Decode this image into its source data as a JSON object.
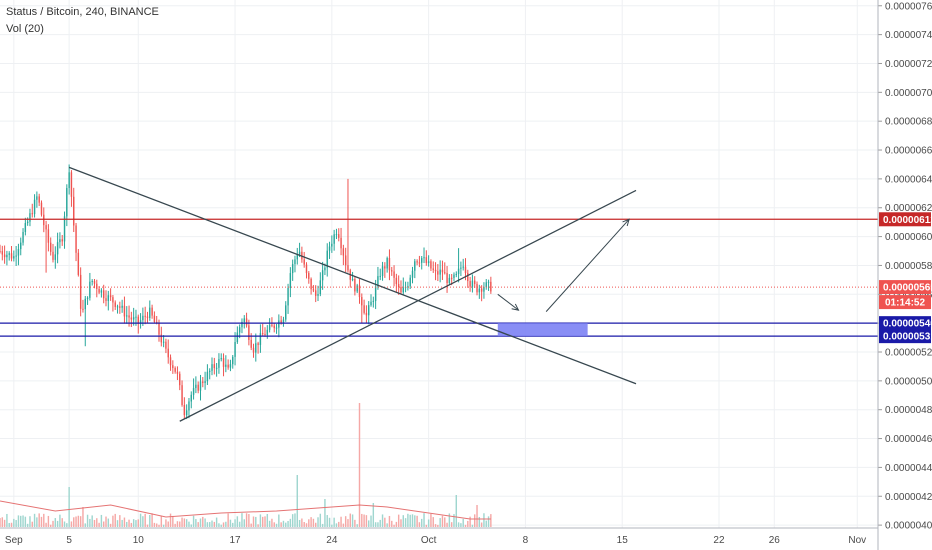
{
  "header": {
    "symbol": "Status / Bitcoin",
    "interval": "240",
    "exchange": "BINANCE",
    "volume_label": "Vol (20)"
  },
  "chart_data": {
    "type": "candlestick",
    "y_ticks": [
      "0.00000400",
      "0.00000420",
      "0.00000440",
      "0.00000460",
      "0.00000480",
      "0.00000500",
      "0.00000520",
      "0.00000540",
      "0.00000560",
      "0.00000580",
      "0.00000600",
      "0.00000620",
      "0.00000640",
      "0.00000660",
      "0.00000680",
      "0.00000700",
      "0.00000720",
      "0.00000740",
      "0.00000760"
    ],
    "y_tick_values": [
      400,
      420,
      440,
      460,
      480,
      500,
      520,
      540,
      560,
      580,
      600,
      620,
      640,
      660,
      680,
      700,
      720,
      740,
      760
    ],
    "x_ticks": [
      {
        "label": "Sep",
        "day": 1
      },
      {
        "label": "5",
        "day": 5
      },
      {
        "label": "10",
        "day": 10
      },
      {
        "label": "17",
        "day": 17
      },
      {
        "label": "24",
        "day": 24
      },
      {
        "label": "Oct",
        "day": 31
      },
      {
        "label": "8",
        "day": 38
      },
      {
        "label": "15",
        "day": 45
      },
      {
        "label": "22",
        "day": 52
      },
      {
        "label": "26",
        "day": 56
      },
      {
        "label": "Nov",
        "day": 62
      }
    ],
    "x_domain_days": [
      0,
      63.5
    ],
    "y_domain": [
      398,
      764
    ],
    "price_scale_unit": "1e-8 BTC",
    "price_series_days": [
      0,
      35.5
    ],
    "price_anchors": [
      [
        0,
        590
      ],
      [
        1,
        586
      ],
      [
        2,
        610
      ],
      [
        2.7,
        628
      ],
      [
        3.3,
        603
      ],
      [
        3.8,
        585
      ],
      [
        4.5,
        600
      ],
      [
        5,
        648
      ],
      [
        5.4,
        600
      ],
      [
        5.9,
        545
      ],
      [
        6.6,
        570
      ],
      [
        7.5,
        560
      ],
      [
        8.5,
        553
      ],
      [
        9.2,
        545
      ],
      [
        10,
        540
      ],
      [
        10.8,
        548
      ],
      [
        11.3,
        538
      ],
      [
        12,
        520
      ],
      [
        12.8,
        505
      ],
      [
        13.3,
        478
      ],
      [
        13.8,
        490
      ],
      [
        14.5,
        498
      ],
      [
        15.3,
        508
      ],
      [
        16,
        515
      ],
      [
        16.6,
        505
      ],
      [
        17,
        528
      ],
      [
        17.6,
        545
      ],
      [
        18.3,
        522
      ],
      [
        19,
        532
      ],
      [
        19.8,
        538
      ],
      [
        20.5,
        545
      ],
      [
        21,
        575
      ],
      [
        21.6,
        592
      ],
      [
        22.2,
        572
      ],
      [
        22.8,
        558
      ],
      [
        23.3,
        572
      ],
      [
        23.8,
        593
      ],
      [
        24.4,
        606
      ],
      [
        25,
        582
      ],
      [
        25.5,
        568
      ],
      [
        26,
        560
      ],
      [
        26.5,
        545
      ],
      [
        27,
        558
      ],
      [
        27.5,
        575
      ],
      [
        28,
        582
      ],
      [
        28.5,
        570
      ],
      [
        29,
        560
      ],
      [
        29.5,
        568
      ],
      [
        30,
        584
      ],
      [
        30.5,
        585
      ],
      [
        31,
        580
      ],
      [
        31.5,
        574
      ],
      [
        32,
        576
      ],
      [
        32.5,
        568
      ],
      [
        33,
        572
      ],
      [
        33.5,
        582
      ],
      [
        34,
        568
      ],
      [
        34.5,
        564
      ],
      [
        35,
        566
      ],
      [
        35.5,
        565
      ]
    ],
    "volume_series_days": [
      0,
      35.5
    ],
    "volume_spikes": [
      [
        5,
        20
      ],
      [
        6,
        10
      ],
      [
        21.5,
        26
      ],
      [
        23.5,
        14
      ],
      [
        26,
        62
      ],
      [
        27,
        12
      ],
      [
        33,
        16
      ],
      [
        34.5,
        11
      ]
    ],
    "volume_ma_points": [
      [
        0,
        13
      ],
      [
        4,
        8
      ],
      [
        8,
        11
      ],
      [
        12,
        5
      ],
      [
        16,
        7
      ],
      [
        20,
        8
      ],
      [
        24,
        10
      ],
      [
        26,
        11
      ],
      [
        28,
        10
      ],
      [
        31,
        7
      ],
      [
        34,
        4
      ],
      [
        35.5,
        4
      ]
    ],
    "trendlines": [
      {
        "name": "descending-resistance",
        "from": [
          5,
          648
        ],
        "to": [
          46,
          498
        ],
        "color": "#37474f"
      },
      {
        "name": "ascending-support",
        "from": [
          13,
          472
        ],
        "to": [
          46,
          632
        ],
        "color": "#37474f"
      }
    ],
    "arrows": [
      {
        "name": "down-arrow",
        "from": [
          36,
          560
        ],
        "to": [
          37.5,
          549
        ],
        "color": "#37474f"
      },
      {
        "name": "up-arrow",
        "from": [
          39.5,
          548
        ],
        "to": [
          45.5,
          612
        ],
        "color": "#37474f"
      }
    ],
    "target_zone": {
      "x": [
        36,
        42.5
      ],
      "y": [
        531,
        540
      ],
      "color": "#7c82f4"
    },
    "horizontal_levels": [
      {
        "name": "resistance-level",
        "value": 612,
        "label": "0.00000612",
        "color": "#c62828"
      },
      {
        "name": "support-level-upper",
        "value": 540,
        "label": "0.00000540",
        "color": "#1a1aa8"
      },
      {
        "name": "support-level-lower",
        "value": 531,
        "label": "0.00000531",
        "color": "#1a1aa8"
      }
    ],
    "last_price": {
      "value": 565,
      "label": "0.00000565",
      "countdown": "01:14:52",
      "color": "#ef5350"
    },
    "colors": {
      "up": "#26a69a",
      "down": "#ef5350",
      "volume_up": "#9fd6cf",
      "volume_down": "#f5a8a6",
      "grid": "#eef0f3",
      "text": "#4a4a4a"
    }
  }
}
